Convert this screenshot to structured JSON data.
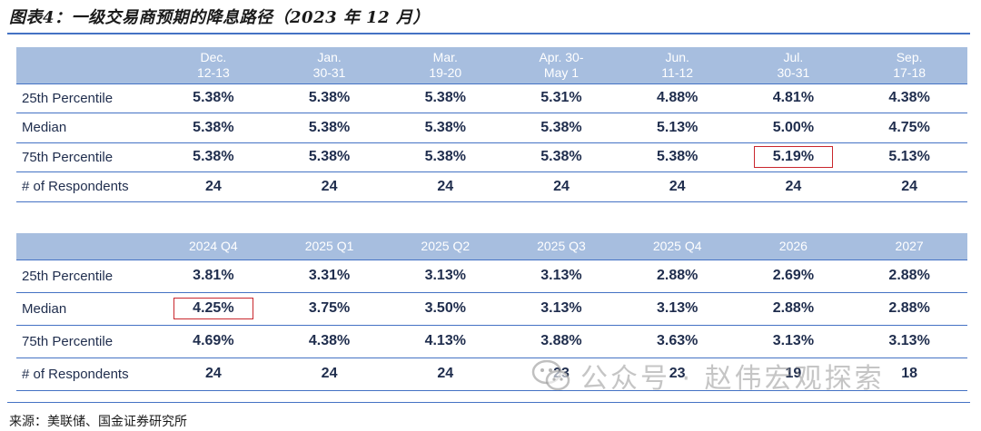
{
  "title": "图表4：一级交易商预期的降息路径（2023 年 12 月）",
  "table1": {
    "header_label": "",
    "columns": [
      [
        "Dec.",
        "12-13"
      ],
      [
        "Jan.",
        "30-31"
      ],
      [
        "Mar.",
        "19-20"
      ],
      [
        "Apr. 30-",
        "May 1"
      ],
      [
        "Jun.",
        "11-12"
      ],
      [
        "Jul.",
        "30-31"
      ],
      [
        "Sep.",
        "17-18"
      ]
    ],
    "rows": [
      {
        "label": "25th Percentile",
        "values": [
          "5.38%",
          "5.38%",
          "5.38%",
          "5.31%",
          "4.88%",
          "4.81%",
          "4.38%"
        ]
      },
      {
        "label": "Median",
        "values": [
          "5.38%",
          "5.38%",
          "5.38%",
          "5.38%",
          "5.13%",
          "5.00%",
          "4.75%"
        ]
      },
      {
        "label": "75th Percentile",
        "values": [
          "5.38%",
          "5.38%",
          "5.38%",
          "5.38%",
          "5.38%",
          "5.19%",
          "5.13%"
        ]
      },
      {
        "label": "# of Respondents",
        "values": [
          "24",
          "24",
          "24",
          "24",
          "24",
          "24",
          "24"
        ]
      }
    ],
    "highlight": {
      "row": 2,
      "col": 5
    }
  },
  "table2": {
    "header_label": "",
    "columns": [
      "2024 Q4",
      "2025 Q1",
      "2025 Q2",
      "2025 Q3",
      "2025 Q4",
      "2026",
      "2027"
    ],
    "rows": [
      {
        "label": "25th Percentile",
        "values": [
          "3.81%",
          "3.31%",
          "3.13%",
          "3.13%",
          "2.88%",
          "2.69%",
          "2.88%"
        ]
      },
      {
        "label": "Median",
        "values": [
          "4.25%",
          "3.75%",
          "3.50%",
          "3.13%",
          "3.13%",
          "2.88%",
          "2.88%"
        ]
      },
      {
        "label": "75th Percentile",
        "values": [
          "4.69%",
          "4.38%",
          "4.13%",
          "3.88%",
          "3.63%",
          "3.13%",
          "3.13%"
        ]
      },
      {
        "label": "# of Respondents",
        "values": [
          "24",
          "24",
          "24",
          "23",
          "23",
          "19",
          "18"
        ]
      }
    ],
    "highlight": {
      "row": 1,
      "col": 0
    }
  },
  "source": "来源：美联储、国金证券研究所",
  "watermark": {
    "text": "公众号 · 赵伟宏观探索",
    "icon": "wechat-icon"
  },
  "colors": {
    "header_bg": "#a7bedf",
    "rule": "#4472c4",
    "highlight": "#c9272d",
    "text": "#1f2d4d"
  }
}
